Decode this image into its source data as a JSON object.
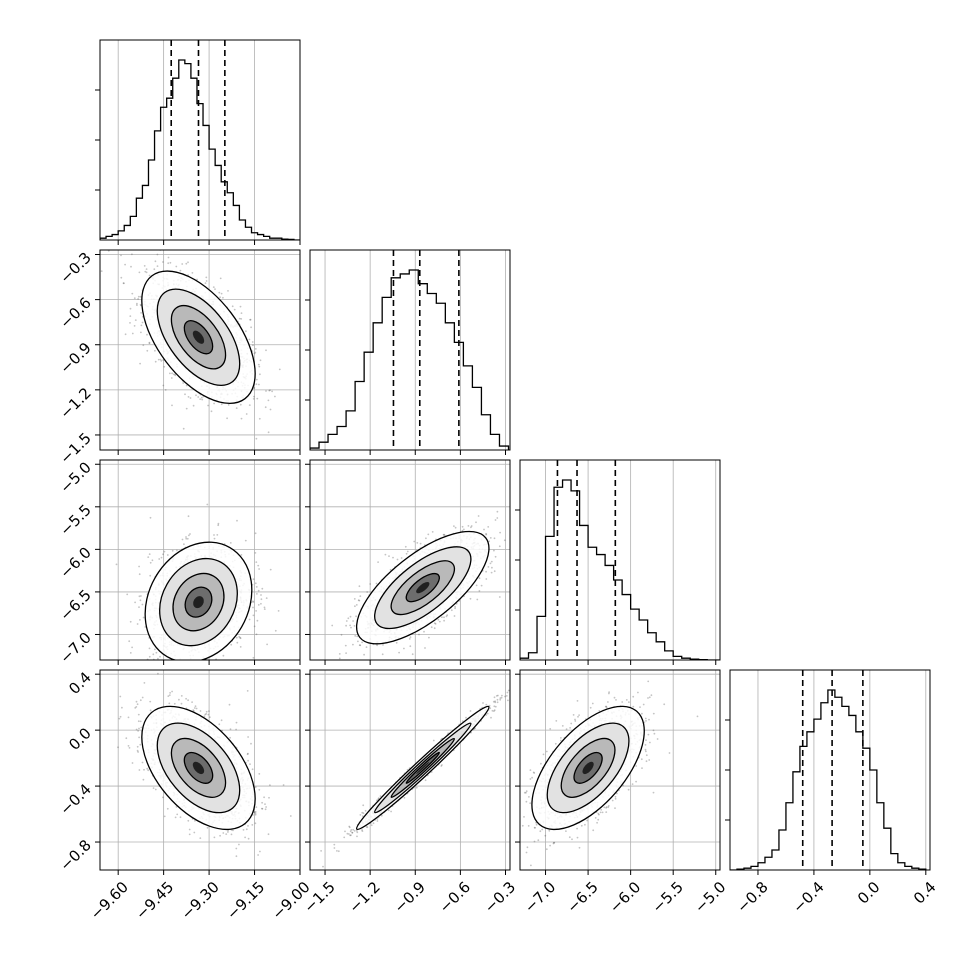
{
  "chart_data": {
    "type": "corner",
    "grid": true,
    "parameters": [
      {
        "index": 0,
        "range": [
          -9.66,
          -9.0
        ],
        "ticks": [
          -9.6,
          -9.45,
          -9.3,
          -9.15,
          -9.0
        ],
        "tick_labels": [
          "−9.60",
          "−9.45",
          "−9.30",
          "−9.15",
          "−9.00"
        ],
        "median": -9.335,
        "quantile_16": -9.425,
        "quantile_84": -9.248
      },
      {
        "index": 1,
        "range": [
          -1.6,
          -0.27
        ],
        "ticks": [
          -1.5,
          -1.2,
          -0.9,
          -0.6,
          -0.3
        ],
        "tick_labels": [
          "−1.5",
          "−1.2",
          "−0.9",
          "−0.6",
          "−0.3"
        ],
        "median": -0.87,
        "quantile_16": -1.045,
        "quantile_84": -0.61
      },
      {
        "index": 2,
        "range": [
          -7.3,
          -4.95
        ],
        "ticks": [
          -7.0,
          -6.5,
          -6.0,
          -5.5,
          -5.0
        ],
        "tick_labels": [
          "−7.0",
          "−6.5",
          "−6.0",
          "−5.5",
          "−5.0"
        ],
        "median": -6.63,
        "quantile_16": -6.86,
        "quantile_84": -6.18
      },
      {
        "index": 3,
        "range": [
          -1.0,
          0.43
        ],
        "ticks": [
          -0.8,
          -0.4,
          0.0,
          0.4
        ],
        "tick_labels": [
          "−0.8",
          "−0.4",
          "0.0",
          "0.4"
        ],
        "median": -0.27,
        "quantile_16": -0.48,
        "quantile_84": -0.05
      }
    ],
    "histograms": [
      {
        "param": 0,
        "bins": [
          -9.66,
          -9.64,
          -9.62,
          -9.6,
          -9.58,
          -9.56,
          -9.54,
          -9.52,
          -9.5,
          -9.48,
          -9.46,
          -9.44,
          -9.42,
          -9.4,
          -9.38,
          -9.36,
          -9.34,
          -9.32,
          -9.3,
          -9.28,
          -9.26,
          -9.24,
          -9.22,
          -9.2,
          -9.18,
          -9.16,
          -9.14,
          -9.12,
          -9.1,
          -9.08,
          -9.06,
          -9.04,
          -9.02,
          -9.0
        ],
        "counts": [
          0.01,
          0.02,
          0.03,
          0.05,
          0.08,
          0.13,
          0.23,
          0.3,
          0.44,
          0.6,
          0.73,
          0.78,
          0.89,
          0.99,
          0.97,
          0.89,
          0.75,
          0.63,
          0.5,
          0.41,
          0.32,
          0.26,
          0.19,
          0.11,
          0.07,
          0.04,
          0.03,
          0.02,
          0.01,
          0.01,
          0.005,
          0.003,
          0.0
        ]
      },
      {
        "param": 1,
        "bins": [
          -1.6,
          -1.54,
          -1.48,
          -1.42,
          -1.36,
          -1.3,
          -1.24,
          -1.18,
          -1.12,
          -1.06,
          -1.0,
          -0.94,
          -0.88,
          -0.82,
          -0.76,
          -0.7,
          -0.64,
          -0.58,
          -0.52,
          -0.46,
          -0.4,
          -0.34,
          -0.28
        ],
        "counts": [
          0.01,
          0.04,
          0.08,
          0.12,
          0.2,
          0.35,
          0.5,
          0.65,
          0.78,
          0.88,
          0.9,
          0.92,
          0.85,
          0.8,
          0.75,
          0.65,
          0.55,
          0.43,
          0.32,
          0.18,
          0.08,
          0.02
        ]
      },
      {
        "param": 2,
        "bins": [
          -7.3,
          -7.2,
          -7.1,
          -7.0,
          -6.9,
          -6.8,
          -6.7,
          -6.6,
          -6.5,
          -6.4,
          -6.3,
          -6.2,
          -6.1,
          -6.0,
          -5.9,
          -5.8,
          -5.7,
          -5.6,
          -5.5,
          -5.4,
          -5.3,
          -5.2,
          -5.1,
          -5.0,
          -4.95
        ],
        "counts": [
          0.01,
          0.04,
          0.24,
          0.68,
          0.95,
          0.99,
          0.93,
          0.74,
          0.62,
          0.58,
          0.52,
          0.44,
          0.36,
          0.28,
          0.22,
          0.15,
          0.1,
          0.05,
          0.02,
          0.01,
          0.005,
          0.002,
          0.0,
          0.0
        ]
      },
      {
        "param": 3,
        "bins": [
          -1.0,
          -0.95,
          -0.9,
          -0.85,
          -0.8,
          -0.75,
          -0.7,
          -0.65,
          -0.6,
          -0.55,
          -0.5,
          -0.45,
          -0.4,
          -0.35,
          -0.3,
          -0.25,
          -0.2,
          -0.15,
          -0.1,
          -0.05,
          0.0,
          0.05,
          0.1,
          0.15,
          0.2,
          0.25,
          0.3,
          0.35,
          0.4
        ],
        "counts": [
          0.0,
          0.005,
          0.01,
          0.02,
          0.04,
          0.07,
          0.11,
          0.22,
          0.37,
          0.54,
          0.68,
          0.76,
          0.83,
          0.92,
          0.99,
          0.95,
          0.9,
          0.85,
          0.76,
          0.67,
          0.55,
          0.37,
          0.23,
          0.09,
          0.04,
          0.02,
          0.01,
          0.005
        ]
      }
    ],
    "pairs": [
      {
        "x": 0,
        "y": 1,
        "mean": [
          -9.335,
          -0.85
        ],
        "sd": [
          0.085,
          0.2
        ],
        "rho": -0.55
      },
      {
        "x": 0,
        "y": 2,
        "mean": [
          -9.335,
          -6.62
        ],
        "sd": [
          0.08,
          0.32
        ],
        "rho": 0.2
      },
      {
        "x": 1,
        "y": 2,
        "mean": [
          -0.85,
          -6.45
        ],
        "sd": [
          0.2,
          0.3
        ],
        "rho": 0.7
      },
      {
        "x": 0,
        "y": 3,
        "mean": [
          -9.335,
          -0.27
        ],
        "sd": [
          0.085,
          0.2
        ],
        "rho": -0.5
      },
      {
        "x": 1,
        "y": 3,
        "mean": [
          -0.85,
          -0.27
        ],
        "sd": [
          0.2,
          0.2
        ],
        "rho": 0.985
      },
      {
        "x": 2,
        "y": 3,
        "mean": [
          -6.5,
          -0.27
        ],
        "sd": [
          0.3,
          0.2
        ],
        "rho": 0.6
      }
    ]
  }
}
